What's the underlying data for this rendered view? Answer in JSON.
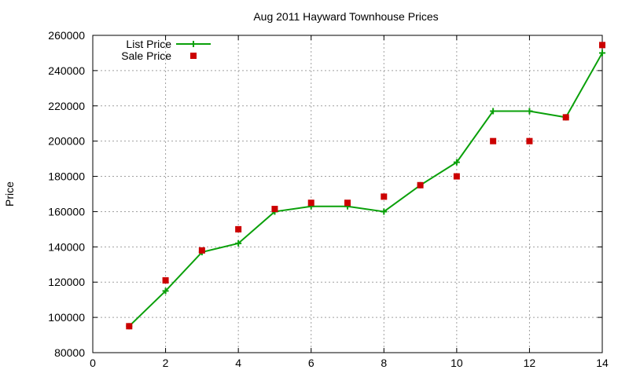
{
  "chart_data": {
    "type": "line",
    "title": "Aug 2011 Hayward Townhouse Prices",
    "xlabel": "",
    "ylabel": "Price",
    "xlim": [
      0,
      14
    ],
    "ylim": [
      80000,
      260000
    ],
    "x_ticks": [
      0,
      2,
      4,
      6,
      8,
      10,
      12,
      14
    ],
    "y_ticks": [
      80000,
      100000,
      120000,
      140000,
      160000,
      180000,
      200000,
      220000,
      240000,
      260000
    ],
    "x_tick_labels": [
      "0",
      "2",
      "4",
      "6",
      "8",
      "10",
      "12",
      "14"
    ],
    "y_tick_labels": [
      "80000",
      "100000",
      "120000",
      "140000",
      "160000",
      "180000",
      "200000",
      "220000",
      "240000",
      "260000"
    ],
    "grid": true,
    "legend_position": "top-left",
    "series": [
      {
        "name": "List Price",
        "style": "line-with-plus",
        "color": "#0aa00a",
        "x": [
          1,
          2,
          3,
          4,
          5,
          6,
          7,
          8,
          9,
          10,
          11,
          12,
          13,
          14
        ],
        "y": [
          95000,
          115000,
          137000,
          142000,
          160000,
          163000,
          163000,
          160000,
          175000,
          188000,
          217000,
          217000,
          213500,
          250000
        ]
      },
      {
        "name": "Sale Price",
        "style": "square-markers",
        "color": "#cc0000",
        "x": [
          1,
          2,
          3,
          4,
          5,
          6,
          7,
          8,
          9,
          10,
          11,
          12,
          13,
          14
        ],
        "y": [
          95000,
          121000,
          138000,
          150000,
          161500,
          165000,
          165000,
          168500,
          175000,
          180000,
          200000,
          200000,
          213500,
          254500
        ]
      }
    ]
  }
}
